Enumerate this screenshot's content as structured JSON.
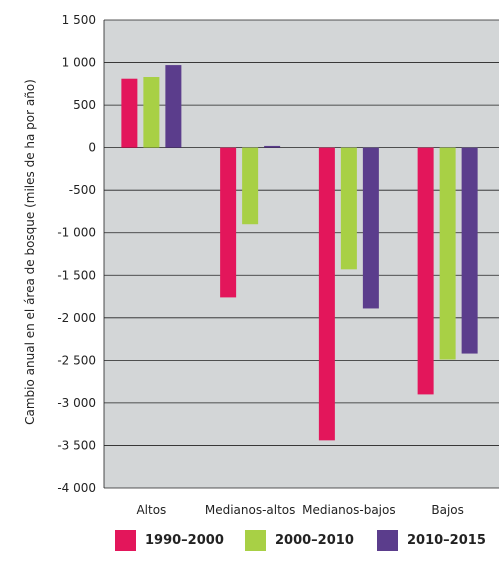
{
  "chart_data": {
    "type": "bar",
    "ylabel": "Cambio anual en el área de bosque (miles de ha por año)",
    "xlabel": "",
    "ylim": [
      -4000,
      1500
    ],
    "grid": true,
    "legend_placement": "bottom",
    "yticks": [
      "1 500",
      "1 000",
      "500",
      "0",
      "-500",
      "-1 000",
      "-1 500",
      "-2 000",
      "-2 500",
      "-3 000",
      "-3 500",
      "-4 000"
    ],
    "ytick_values": [
      1500,
      1000,
      500,
      0,
      -500,
      -1000,
      -1500,
      -2000,
      -2500,
      -3000,
      -3500,
      -4000
    ],
    "categories": [
      "Altos",
      "Medianos-altos",
      "Medianos-bajos",
      "Bajos"
    ],
    "series": [
      {
        "name": "1990–2000",
        "color": "#e3165b",
        "values": [
          810,
          -1760,
          -3440,
          -2900
        ]
      },
      {
        "name": "2000–2010",
        "color": "#a8d045",
        "values": [
          830,
          -900,
          -1430,
          -2490
        ]
      },
      {
        "name": "2010–2015",
        "color": "#5b3d8c",
        "values": [
          970,
          20,
          -1890,
          -2420
        ]
      }
    ],
    "plot_background": "#d3d6d7"
  }
}
